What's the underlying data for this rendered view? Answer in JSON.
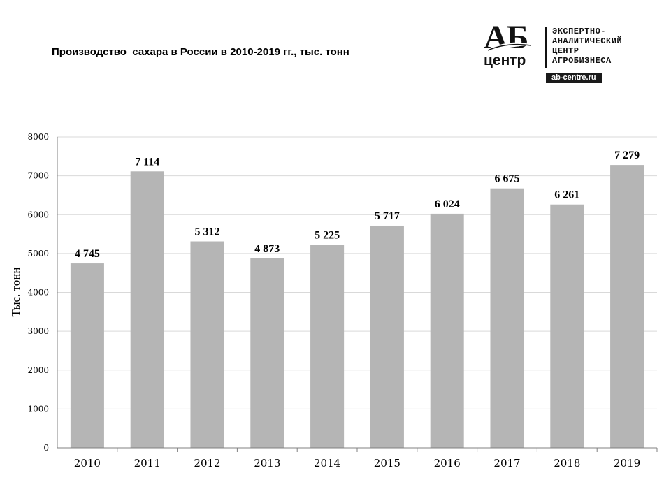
{
  "header": {
    "title": "Производство  сахара в России в 2010-2019 гг., тыс. тонн"
  },
  "logo": {
    "mark_top": "АБ",
    "mark_bottom": "центр",
    "lines": [
      "ЭКСПЕРТНО-",
      "АНАЛИТИЧЕСКИЙ",
      "ЦЕНТР",
      "АГРОБИЗНЕСА"
    ],
    "site": "ab-centre.ru"
  },
  "chart_data": {
    "type": "bar",
    "categories": [
      "2010",
      "2011",
      "2012",
      "2013",
      "2014",
      "2015",
      "2016",
      "2017",
      "2018",
      "2019"
    ],
    "values": [
      4745,
      7114,
      5312,
      4873,
      5225,
      5717,
      6024,
      6675,
      6261,
      7279
    ],
    "data_labels": [
      "4 745",
      "7 114",
      "5 312",
      "4 873",
      "5 225",
      "5 717",
      "6 024",
      "6 675",
      "6 261",
      "7 279"
    ],
    "title": "Производство  сахара в России в 2010-2019 гг., тыс. тонн",
    "xlabel": "",
    "ylabel": "Тыс. тонн",
    "ylim": [
      0,
      8000
    ],
    "yticks": [
      0,
      1000,
      2000,
      3000,
      4000,
      5000,
      6000,
      7000,
      8000
    ],
    "grid": true,
    "legend": "none",
    "colors": {
      "bar": "#b5b5b5",
      "grid": "#d9d9d9",
      "axis": "#808080"
    }
  }
}
